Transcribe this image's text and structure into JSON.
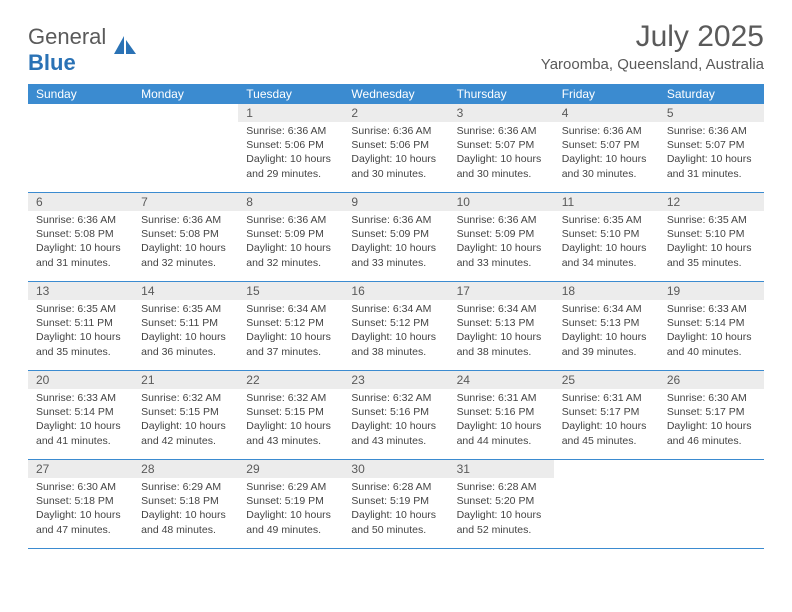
{
  "logo": {
    "text1": "General",
    "text2": "Blue"
  },
  "title": "July 2025",
  "location": "Yaroomba, Queensland, Australia",
  "colors": {
    "header_bg": "#3b8bd0",
    "header_text": "#ffffff",
    "daynum_bg": "#ececec",
    "text": "#5a5a5a",
    "border": "#3b8bd0"
  },
  "day_names": [
    "Sunday",
    "Monday",
    "Tuesday",
    "Wednesday",
    "Thursday",
    "Friday",
    "Saturday"
  ],
  "weeks": [
    [
      {
        "n": "",
        "empty": true
      },
      {
        "n": "",
        "empty": true
      },
      {
        "n": "1",
        "sr": "6:36 AM",
        "ss": "5:06 PM",
        "dl": "10 hours and 29 minutes."
      },
      {
        "n": "2",
        "sr": "6:36 AM",
        "ss": "5:06 PM",
        "dl": "10 hours and 30 minutes."
      },
      {
        "n": "3",
        "sr": "6:36 AM",
        "ss": "5:07 PM",
        "dl": "10 hours and 30 minutes."
      },
      {
        "n": "4",
        "sr": "6:36 AM",
        "ss": "5:07 PM",
        "dl": "10 hours and 30 minutes."
      },
      {
        "n": "5",
        "sr": "6:36 AM",
        "ss": "5:07 PM",
        "dl": "10 hours and 31 minutes."
      }
    ],
    [
      {
        "n": "6",
        "sr": "6:36 AM",
        "ss": "5:08 PM",
        "dl": "10 hours and 31 minutes."
      },
      {
        "n": "7",
        "sr": "6:36 AM",
        "ss": "5:08 PM",
        "dl": "10 hours and 32 minutes."
      },
      {
        "n": "8",
        "sr": "6:36 AM",
        "ss": "5:09 PM",
        "dl": "10 hours and 32 minutes."
      },
      {
        "n": "9",
        "sr": "6:36 AM",
        "ss": "5:09 PM",
        "dl": "10 hours and 33 minutes."
      },
      {
        "n": "10",
        "sr": "6:36 AM",
        "ss": "5:09 PM",
        "dl": "10 hours and 33 minutes."
      },
      {
        "n": "11",
        "sr": "6:35 AM",
        "ss": "5:10 PM",
        "dl": "10 hours and 34 minutes."
      },
      {
        "n": "12",
        "sr": "6:35 AM",
        "ss": "5:10 PM",
        "dl": "10 hours and 35 minutes."
      }
    ],
    [
      {
        "n": "13",
        "sr": "6:35 AM",
        "ss": "5:11 PM",
        "dl": "10 hours and 35 minutes."
      },
      {
        "n": "14",
        "sr": "6:35 AM",
        "ss": "5:11 PM",
        "dl": "10 hours and 36 minutes."
      },
      {
        "n": "15",
        "sr": "6:34 AM",
        "ss": "5:12 PM",
        "dl": "10 hours and 37 minutes."
      },
      {
        "n": "16",
        "sr": "6:34 AM",
        "ss": "5:12 PM",
        "dl": "10 hours and 38 minutes."
      },
      {
        "n": "17",
        "sr": "6:34 AM",
        "ss": "5:13 PM",
        "dl": "10 hours and 38 minutes."
      },
      {
        "n": "18",
        "sr": "6:34 AM",
        "ss": "5:13 PM",
        "dl": "10 hours and 39 minutes."
      },
      {
        "n": "19",
        "sr": "6:33 AM",
        "ss": "5:14 PM",
        "dl": "10 hours and 40 minutes."
      }
    ],
    [
      {
        "n": "20",
        "sr": "6:33 AM",
        "ss": "5:14 PM",
        "dl": "10 hours and 41 minutes."
      },
      {
        "n": "21",
        "sr": "6:32 AM",
        "ss": "5:15 PM",
        "dl": "10 hours and 42 minutes."
      },
      {
        "n": "22",
        "sr": "6:32 AM",
        "ss": "5:15 PM",
        "dl": "10 hours and 43 minutes."
      },
      {
        "n": "23",
        "sr": "6:32 AM",
        "ss": "5:16 PM",
        "dl": "10 hours and 43 minutes."
      },
      {
        "n": "24",
        "sr": "6:31 AM",
        "ss": "5:16 PM",
        "dl": "10 hours and 44 minutes."
      },
      {
        "n": "25",
        "sr": "6:31 AM",
        "ss": "5:17 PM",
        "dl": "10 hours and 45 minutes."
      },
      {
        "n": "26",
        "sr": "6:30 AM",
        "ss": "5:17 PM",
        "dl": "10 hours and 46 minutes."
      }
    ],
    [
      {
        "n": "27",
        "sr": "6:30 AM",
        "ss": "5:18 PM",
        "dl": "10 hours and 47 minutes."
      },
      {
        "n": "28",
        "sr": "6:29 AM",
        "ss": "5:18 PM",
        "dl": "10 hours and 48 minutes."
      },
      {
        "n": "29",
        "sr": "6:29 AM",
        "ss": "5:19 PM",
        "dl": "10 hours and 49 minutes."
      },
      {
        "n": "30",
        "sr": "6:28 AM",
        "ss": "5:19 PM",
        "dl": "10 hours and 50 minutes."
      },
      {
        "n": "31",
        "sr": "6:28 AM",
        "ss": "5:20 PM",
        "dl": "10 hours and 52 minutes."
      },
      {
        "n": "",
        "empty": true
      },
      {
        "n": "",
        "empty": true
      }
    ]
  ],
  "labels": {
    "sunrise": "Sunrise:",
    "sunset": "Sunset:",
    "daylight": "Daylight:"
  }
}
